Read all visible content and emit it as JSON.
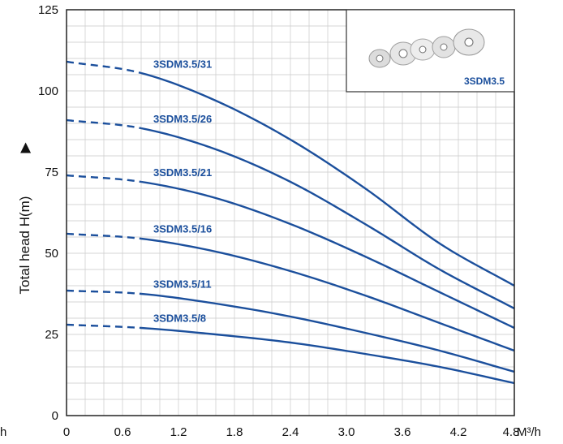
{
  "chart_data": {
    "type": "line",
    "xlabel": "M³/h",
    "x_edge_clipped_label": "h",
    "ylabel": "Total head H(m)",
    "y_arrow": "▶",
    "xlim": [
      0,
      4.8
    ],
    "ylim": [
      0,
      125
    ],
    "x_ticks": [
      "0",
      "0.6",
      "1.2",
      "1.8",
      "2.4",
      "3.0",
      "3.6",
      "4.2",
      "4.8"
    ],
    "x_tick_values": [
      0,
      0.6,
      1.2,
      1.8,
      2.4,
      3.0,
      3.6,
      4.2,
      4.8
    ],
    "y_ticks": [
      "0",
      "25",
      "50",
      "75",
      "100",
      "125"
    ],
    "y_tick_values": [
      0,
      25,
      50,
      75,
      100,
      125
    ],
    "grid": true,
    "dashed_until_x": 0.8,
    "line_color": "#1b4f9c",
    "series": [
      {
        "name": "3SDM3.5/31",
        "x": [
          0,
          0.8,
          1.6,
          2.4,
          3.2,
          4.0,
          4.8
        ],
        "y": [
          109,
          105.5,
          97,
          85,
          70,
          53,
          40
        ]
      },
      {
        "name": "3SDM3.5/26",
        "x": [
          0,
          0.8,
          1.6,
          2.4,
          3.2,
          4.0,
          4.8
        ],
        "y": [
          91,
          88.5,
          82,
          72,
          59,
          45,
          33
        ]
      },
      {
        "name": "3SDM3.5/21",
        "x": [
          0,
          0.8,
          1.6,
          2.4,
          3.2,
          4.0,
          4.8
        ],
        "y": [
          74,
          72,
          67,
          59,
          49,
          38,
          27
        ]
      },
      {
        "name": "3SDM3.5/16",
        "x": [
          0,
          0.8,
          1.6,
          2.4,
          3.2,
          4.0,
          4.8
        ],
        "y": [
          56,
          54.5,
          50.5,
          44.5,
          37,
          28.5,
          20
        ]
      },
      {
        "name": "3SDM3.5/11",
        "x": [
          0,
          0.8,
          1.6,
          2.4,
          3.2,
          4.0,
          4.8
        ],
        "y": [
          38.5,
          37.5,
          34.5,
          30.5,
          25.5,
          20,
          13.5
        ]
      },
      {
        "name": "3SDM3.5/8",
        "x": [
          0,
          0.8,
          1.6,
          2.4,
          3.2,
          4.0,
          4.8
        ],
        "y": [
          28,
          27,
          25,
          22.5,
          19,
          15,
          10
        ]
      }
    ],
    "inset": {
      "label": "3SDM3.5",
      "image": "pump-impellers"
    }
  }
}
